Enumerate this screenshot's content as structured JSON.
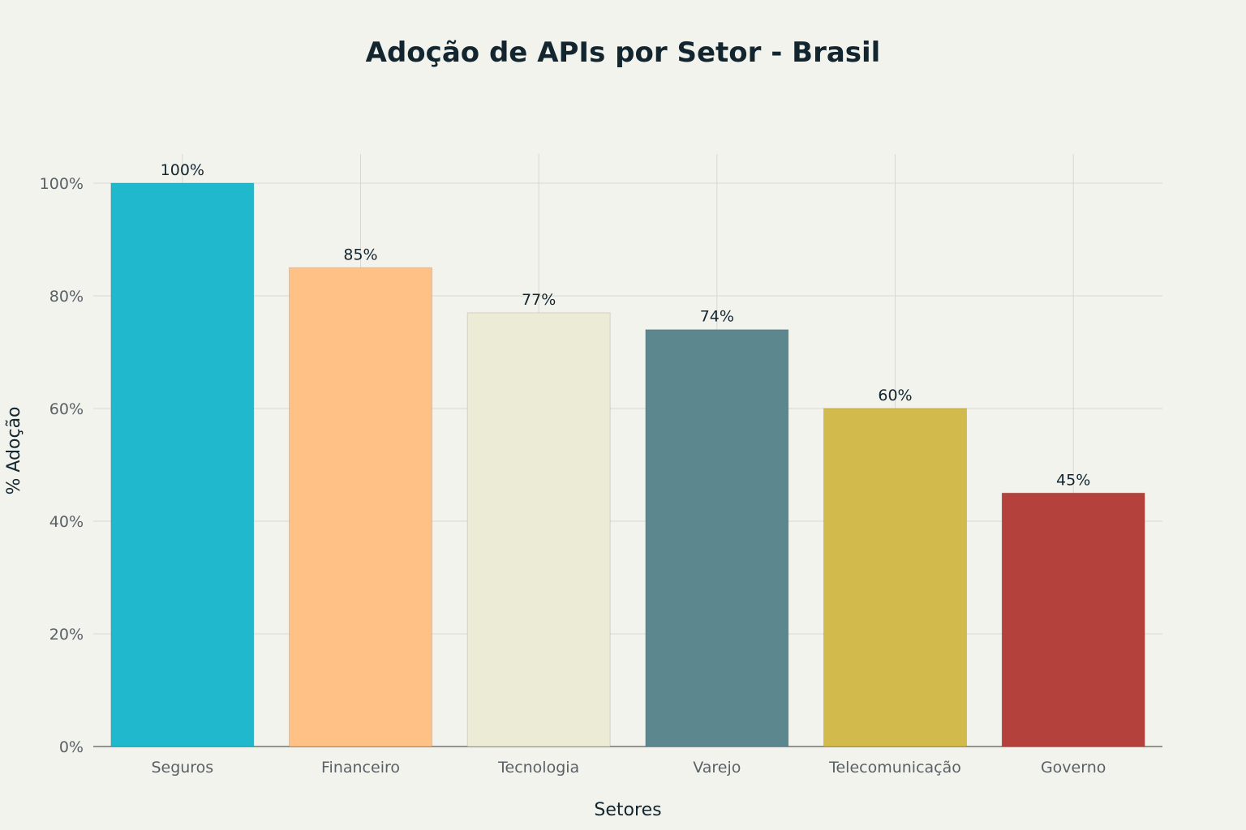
{
  "chart_data": {
    "type": "bar",
    "title": "Adoção de APIs por Setor - Brasil",
    "xlabel": "Setores",
    "ylabel": "% Adoção",
    "categories": [
      "Seguros",
      "Financeiro",
      "Tecnologia",
      "Varejo",
      "Telecomunicação",
      "Governo"
    ],
    "values": [
      100,
      85,
      77,
      74,
      60,
      45
    ],
    "data_labels": [
      "100%",
      "85%",
      "77%",
      "74%",
      "60%",
      "45%"
    ],
    "colors": [
      "#1fb8cd",
      "#ffc185",
      "#eceBd5",
      "#5d878f",
      "#d2ba4c",
      "#b4413c"
    ],
    "ylim": [
      0,
      105
    ],
    "yticks": [
      0,
      20,
      40,
      60,
      80,
      100
    ],
    "ytick_labels": [
      "0%",
      "20%",
      "40%",
      "60%",
      "80%",
      "100%"
    ],
    "grid": true
  }
}
